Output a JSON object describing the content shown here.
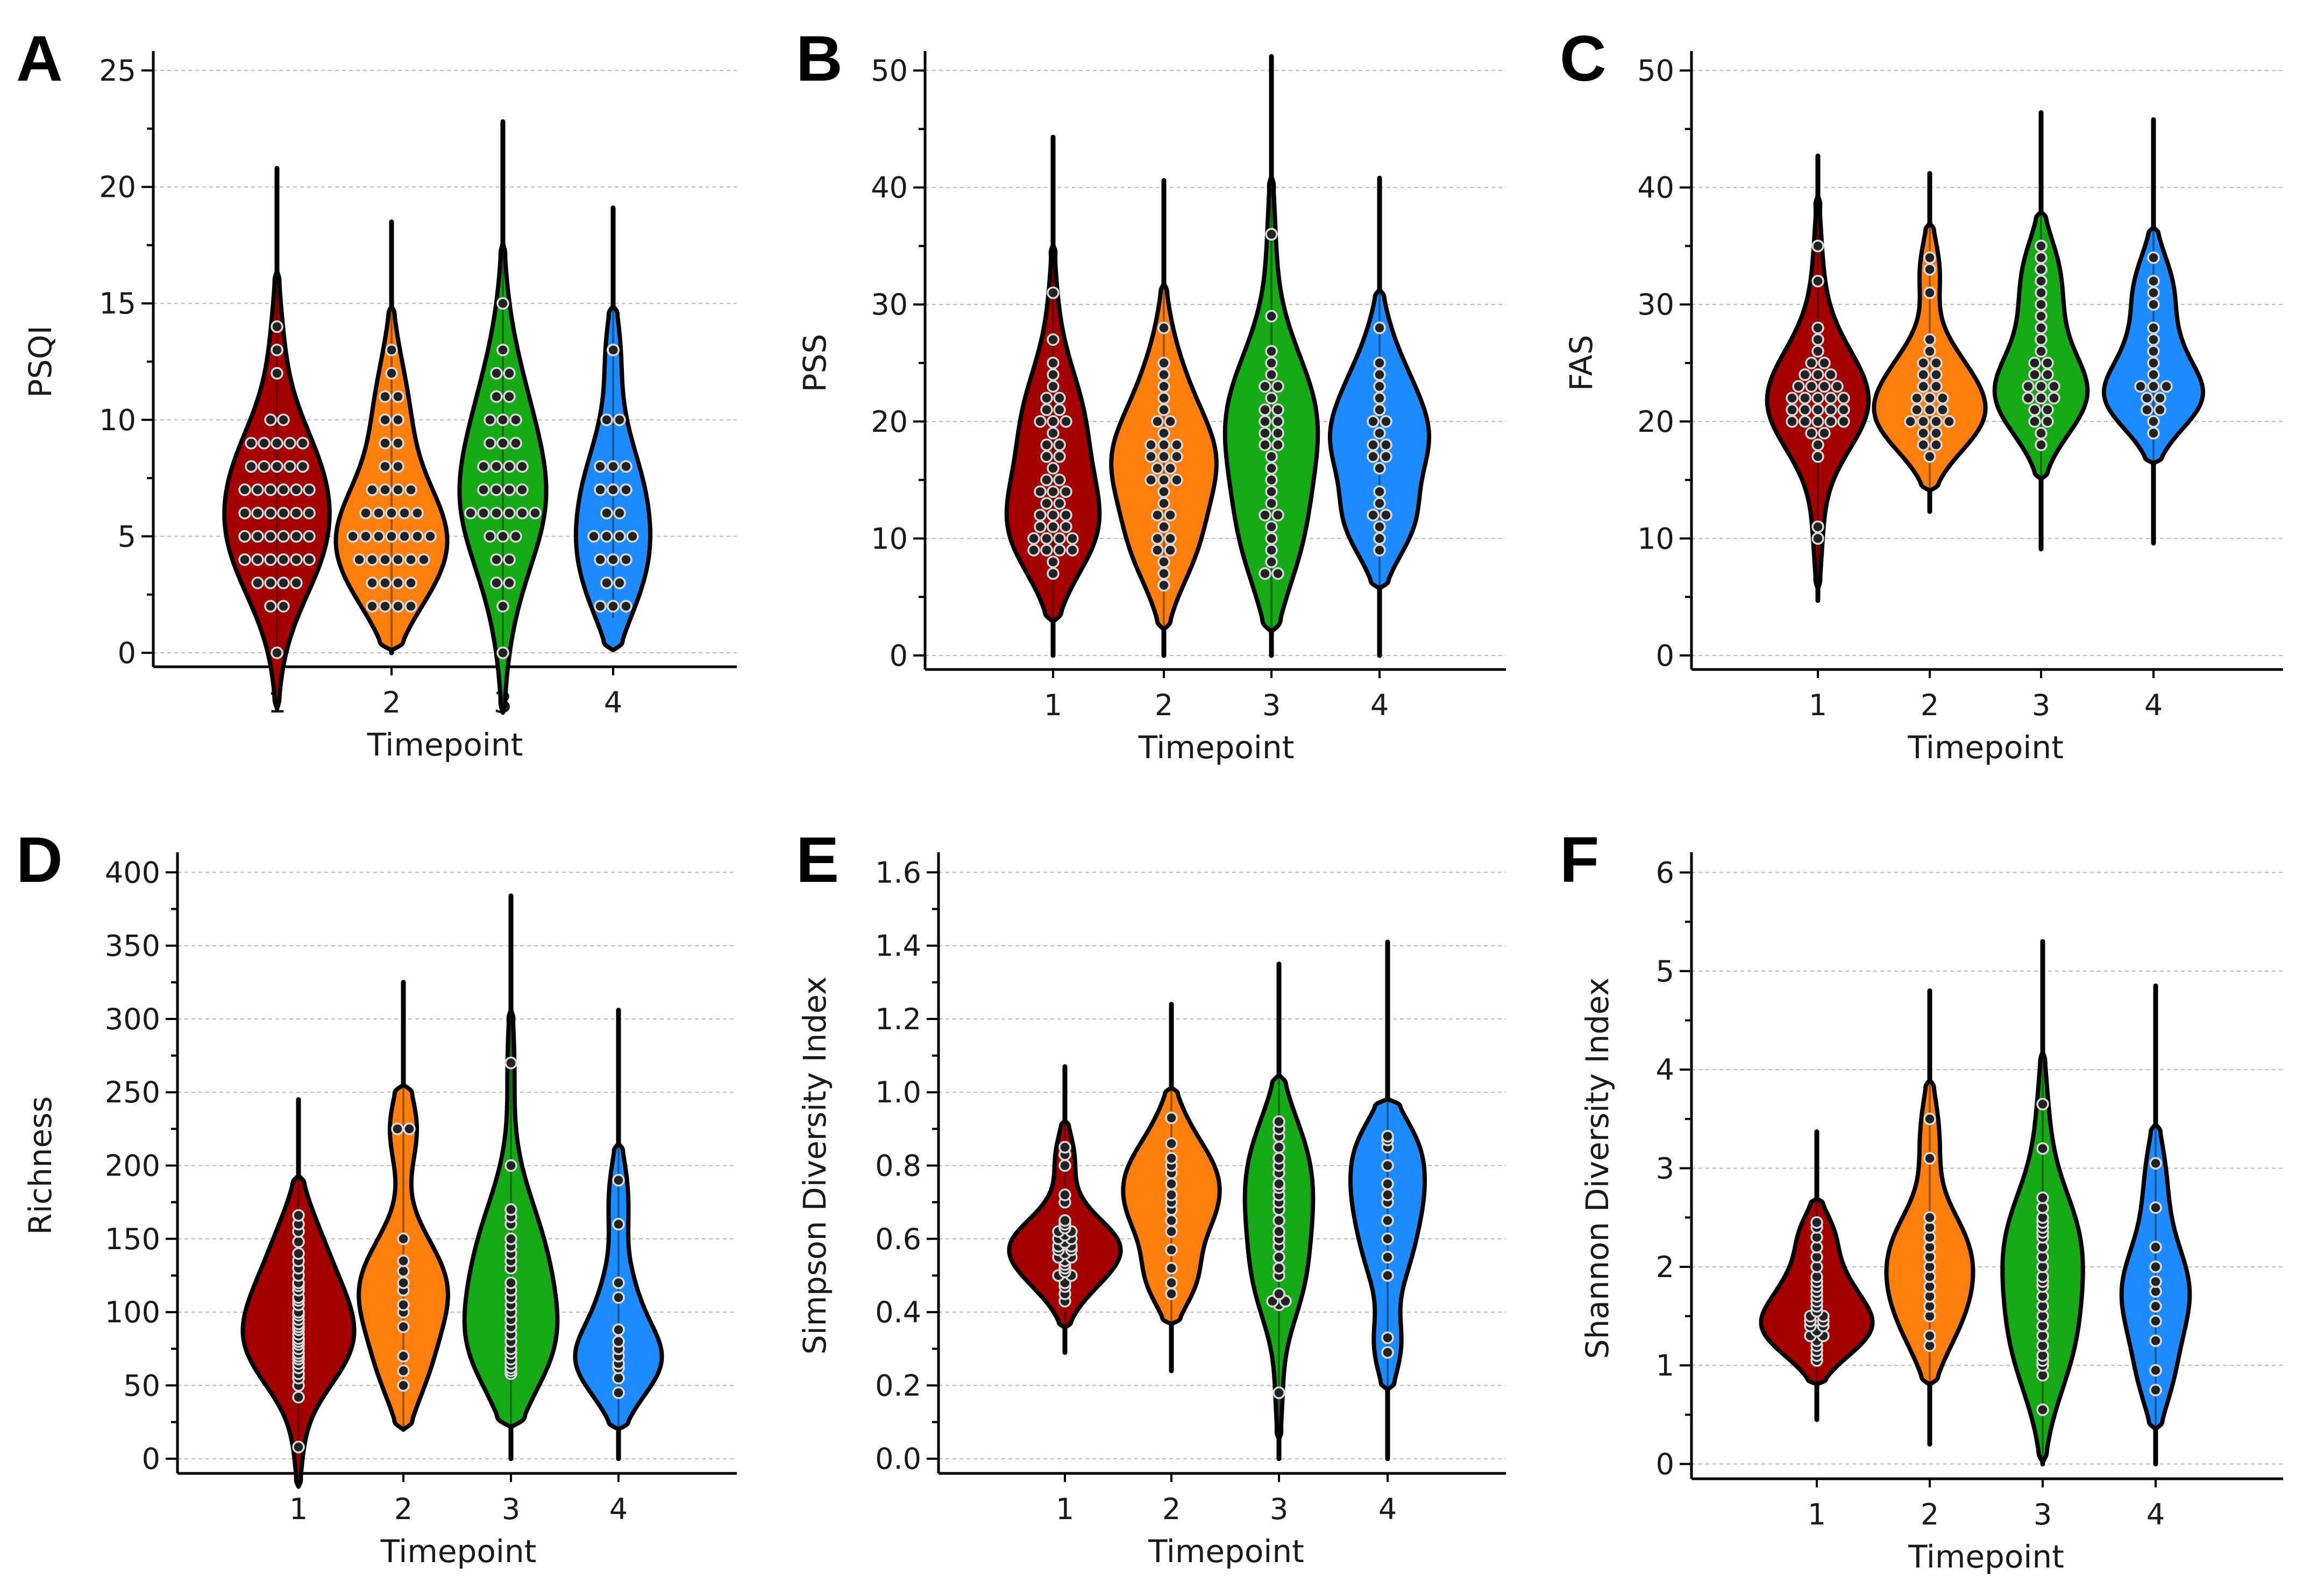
{
  "colors": {
    "timepoint_1": "#A40000",
    "timepoint_2": "#FF7F0E",
    "timepoint_3": "#16AA16",
    "timepoint_4": "#1E8CFF"
  },
  "chart_data": [
    {
      "panel": "A",
      "type": "violin",
      "ylabel": "PSQI",
      "xlabel": "Timepoint",
      "categories": [
        "1",
        "2",
        "3",
        "4"
      ],
      "ylim": [
        -0.6,
        25.6
      ],
      "yticks": [
        0,
        5,
        10,
        15,
        20,
        25
      ],
      "series": [
        {
          "name": "1",
          "range": [
            0,
            20.8
          ],
          "mode": 6,
          "width": 0.85,
          "values": [
            0,
            2,
            2,
            3,
            3,
            3,
            3,
            4,
            4,
            4,
            4,
            4,
            4,
            5,
            5,
            5,
            5,
            5,
            5,
            6,
            6,
            6,
            6,
            6,
            6,
            7,
            7,
            7,
            7,
            7,
            7,
            8,
            8,
            8,
            8,
            8,
            9,
            9,
            9,
            9,
            9,
            10,
            10,
            12,
            13,
            14
          ]
        },
        {
          "name": "2",
          "range": [
            0,
            18.5
          ],
          "mode": 5,
          "width": 0.9,
          "values": [
            2,
            2,
            2,
            2,
            3,
            3,
            3,
            3,
            4,
            4,
            4,
            4,
            4,
            4,
            5,
            5,
            5,
            5,
            5,
            5,
            5,
            6,
            6,
            6,
            6,
            6,
            7,
            7,
            7,
            7,
            8,
            8,
            9,
            9,
            10,
            10,
            11,
            11,
            12,
            13
          ]
        },
        {
          "name": "3",
          "range": [
            0,
            22.8
          ],
          "mode": 6,
          "width": 0.7,
          "values": [
            0,
            2,
            3,
            3,
            4,
            4,
            5,
            5,
            5,
            6,
            6,
            6,
            6,
            6,
            6,
            7,
            7,
            7,
            7,
            8,
            8,
            8,
            8,
            9,
            9,
            9,
            10,
            10,
            10,
            11,
            11,
            12,
            12,
            13,
            15
          ]
        },
        {
          "name": "4",
          "range": [
            1.5,
            19.1
          ],
          "mode": 5.5,
          "width": 0.6,
          "values": [
            2,
            2,
            2,
            3,
            3,
            4,
            4,
            4,
            5,
            5,
            5,
            5,
            6,
            6,
            7,
            7,
            7,
            8,
            8,
            8,
            10,
            10,
            13,
            13
          ]
        }
      ]
    },
    {
      "panel": "B",
      "type": "violin",
      "ylabel": "PSS",
      "xlabel": "Timepoint",
      "categories": [
        "1",
        "2",
        "3",
        "4"
      ],
      "ylim": [
        -1.2,
        51.2
      ],
      "yticks": [
        0,
        10,
        20,
        30,
        40,
        50
      ],
      "series": [
        {
          "name": "1",
          "range": [
            0,
            44.3
          ],
          "mode": 11,
          "width": 0.75,
          "values": [
            7,
            8,
            9,
            9,
            9,
            9,
            10,
            10,
            10,
            10,
            11,
            11,
            11,
            12,
            12,
            12,
            13,
            13,
            14,
            14,
            14,
            15,
            15,
            16,
            17,
            17,
            18,
            18,
            19,
            20,
            20,
            20,
            21,
            21,
            22,
            22,
            23,
            24,
            25,
            27,
            31
          ]
        },
        {
          "name": "2",
          "range": [
            0,
            40.6
          ],
          "mode": 16,
          "width": 0.85,
          "values": [
            6,
            7,
            8,
            9,
            9,
            10,
            10,
            11,
            12,
            12,
            13,
            14,
            15,
            15,
            15,
            16,
            16,
            17,
            17,
            17,
            18,
            18,
            18,
            19,
            20,
            20,
            21,
            22,
            23,
            24,
            25,
            28
          ]
        },
        {
          "name": "3",
          "range": [
            0,
            51.2
          ],
          "mode": 19,
          "width": 0.75,
          "values": [
            7,
            7,
            8,
            9,
            10,
            11,
            12,
            12,
            13,
            14,
            15,
            16,
            17,
            18,
            18,
            19,
            19,
            20,
            20,
            21,
            21,
            22,
            23,
            23,
            24,
            25,
            26,
            29,
            36
          ]
        },
        {
          "name": "4",
          "range": [
            0,
            40.8
          ],
          "mode": 18,
          "width": 0.8,
          "values": [
            9,
            10,
            11,
            12,
            12,
            13,
            14,
            16,
            17,
            17,
            18,
            18,
            19,
            20,
            20,
            21,
            22,
            23,
            24,
            25,
            28
          ]
        }
      ]
    },
    {
      "panel": "C",
      "type": "violin",
      "ylabel": "FAS",
      "xlabel": "Timepoint",
      "categories": [
        "1",
        "2",
        "3",
        "4"
      ],
      "ylim": [
        -1.2,
        51.2
      ],
      "yticks": [
        0,
        10,
        20,
        30,
        40,
        50
      ],
      "series": [
        {
          "name": "1",
          "range": [
            4.7,
            42.7
          ],
          "mode": 21.5,
          "width": 0.82,
          "values": [
            10,
            11,
            17,
            18,
            19,
            19,
            20,
            20,
            20,
            20,
            20,
            21,
            21,
            21,
            21,
            21,
            22,
            22,
            22,
            22,
            22,
            23,
            23,
            23,
            23,
            24,
            24,
            24,
            25,
            25,
            26,
            27,
            28,
            32,
            35
          ]
        },
        {
          "name": "2",
          "range": [
            12.3,
            41.2
          ],
          "mode": 21.5,
          "width": 0.9,
          "values": [
            17,
            18,
            18,
            19,
            19,
            20,
            20,
            20,
            20,
            21,
            21,
            21,
            22,
            22,
            22,
            23,
            23,
            24,
            24,
            25,
            25,
            26,
            27,
            31,
            33,
            34
          ]
        },
        {
          "name": "3",
          "range": [
            9.1,
            46.4
          ],
          "mode": 22.5,
          "width": 0.75,
          "values": [
            18,
            19,
            20,
            20,
            21,
            21,
            22,
            22,
            22,
            23,
            23,
            23,
            24,
            24,
            25,
            25,
            26,
            27,
            28,
            29,
            30,
            31,
            32,
            33,
            34,
            35
          ]
        },
        {
          "name": "4",
          "range": [
            9.6,
            45.8
          ],
          "mode": 23,
          "width": 0.8,
          "values": [
            19,
            20,
            21,
            21,
            22,
            22,
            23,
            23,
            23,
            24,
            25,
            26,
            27,
            28,
            30,
            31,
            32,
            34
          ]
        }
      ]
    },
    {
      "panel": "D",
      "type": "violin",
      "ylabel": "Richness",
      "xlabel": "Timepoint",
      "categories": [
        "1",
        "2",
        "3",
        "4"
      ],
      "ylim": [
        -10,
        410
      ],
      "yticks": [
        0,
        50,
        100,
        150,
        200,
        250,
        300,
        350,
        400
      ],
      "series": [
        {
          "name": "1",
          "range": [
            5,
            245
          ],
          "mode": 75,
          "width": 0.9,
          "values": [
            8,
            42,
            50,
            55,
            58,
            62,
            65,
            68,
            70,
            72,
            75,
            78,
            80,
            82,
            85,
            88,
            90,
            92,
            95,
            98,
            100,
            105,
            108,
            110,
            115,
            118,
            120,
            125,
            130,
            135,
            140,
            148,
            155,
            160,
            166
          ]
        },
        {
          "name": "2",
          "range": [
            20,
            325
          ],
          "mode": 120,
          "width": 0.72,
          "values": [
            50,
            60,
            70,
            90,
            100,
            105,
            115,
            120,
            128,
            135,
            150,
            225,
            225
          ]
        },
        {
          "name": "3",
          "range": [
            0,
            384
          ],
          "mode": 80,
          "width": 0.75,
          "values": [
            58,
            60,
            62,
            65,
            68,
            72,
            75,
            80,
            85,
            90,
            95,
            100,
            105,
            110,
            115,
            120,
            130,
            135,
            140,
            145,
            150,
            160,
            165,
            170,
            200,
            270
          ]
        },
        {
          "name": "4",
          "range": [
            0,
            306
          ],
          "mode": 75,
          "width": 0.7,
          "values": [
            45,
            55,
            62,
            65,
            70,
            75,
            80,
            88,
            110,
            120,
            160,
            190
          ]
        }
      ]
    },
    {
      "panel": "E",
      "type": "violin",
      "ylabel": "Simpson Diversity Index",
      "xlabel": "Timepoint",
      "categories": [
        "1",
        "2",
        "3",
        "4"
      ],
      "ylim": [
        -0.04,
        1.64
      ],
      "yticks": [
        0.0,
        0.2,
        0.4,
        0.6,
        0.8,
        1.0,
        1.2,
        1.4,
        1.6
      ],
      "series": [
        {
          "name": "1",
          "range": [
            0.29,
            1.07
          ],
          "mode": 0.58,
          "width": 0.9,
          "values": [
            0.43,
            0.45,
            0.47,
            0.48,
            0.5,
            0.5,
            0.51,
            0.52,
            0.53,
            0.54,
            0.55,
            0.55,
            0.56,
            0.57,
            0.57,
            0.58,
            0.58,
            0.59,
            0.6,
            0.6,
            0.61,
            0.62,
            0.62,
            0.63,
            0.64,
            0.65,
            0.7,
            0.72,
            0.8,
            0.83,
            0.85
          ]
        },
        {
          "name": "2",
          "range": [
            0.24,
            1.24
          ],
          "mode": 0.78,
          "width": 0.78,
          "values": [
            0.45,
            0.48,
            0.52,
            0.57,
            0.62,
            0.65,
            0.68,
            0.7,
            0.72,
            0.75,
            0.78,
            0.8,
            0.82,
            0.86,
            0.93
          ]
        },
        {
          "name": "3",
          "range": [
            0.0,
            1.35
          ],
          "mode": 0.75,
          "width": 0.55,
          "values": [
            0.18,
            0.42,
            0.43,
            0.43,
            0.45,
            0.5,
            0.52,
            0.55,
            0.58,
            0.6,
            0.62,
            0.65,
            0.68,
            0.7,
            0.72,
            0.74,
            0.75,
            0.78,
            0.8,
            0.82,
            0.85,
            0.88,
            0.9,
            0.92
          ]
        },
        {
          "name": "4",
          "range": [
            0.0,
            1.41
          ],
          "mode": 0.75,
          "width": 0.6,
          "values": [
            0.29,
            0.33,
            0.5,
            0.55,
            0.6,
            0.65,
            0.7,
            0.72,
            0.75,
            0.8,
            0.85,
            0.87,
            0.88
          ]
        }
      ]
    },
    {
      "panel": "F",
      "type": "violin",
      "ylabel": "Shannon Diversity Index",
      "xlabel": "Timepoint",
      "categories": [
        "1",
        "2",
        "3",
        "4"
      ],
      "ylim": [
        -0.15,
        6.15
      ],
      "yticks": [
        0,
        1,
        2,
        3,
        4,
        5,
        6
      ],
      "series": [
        {
          "name": "1",
          "range": [
            0.45,
            3.37
          ],
          "mode": 1.45,
          "width": 0.9,
          "values": [
            1.05,
            1.1,
            1.15,
            1.2,
            1.25,
            1.3,
            1.3,
            1.35,
            1.4,
            1.4,
            1.45,
            1.45,
            1.5,
            1.5,
            1.55,
            1.6,
            1.65,
            1.7,
            1.75,
            1.8,
            1.85,
            1.9,
            2.0,
            2.1,
            2.2,
            2.3,
            2.4,
            2.45
          ]
        },
        {
          "name": "2",
          "range": [
            0.2,
            4.8
          ],
          "mode": 2.2,
          "width": 0.7,
          "values": [
            1.2,
            1.3,
            1.5,
            1.6,
            1.7,
            1.8,
            1.9,
            2.0,
            2.1,
            2.2,
            2.3,
            2.4,
            2.5,
            3.1,
            3.5
          ]
        },
        {
          "name": "3",
          "range": [
            0.0,
            5.3
          ],
          "mode": 1.9,
          "width": 0.65,
          "values": [
            0.55,
            0.9,
            1.0,
            1.05,
            1.1,
            1.2,
            1.3,
            1.4,
            1.5,
            1.6,
            1.7,
            1.8,
            1.85,
            1.9,
            2.0,
            2.1,
            2.2,
            2.3,
            2.35,
            2.4,
            2.45,
            2.5,
            2.6,
            2.7,
            3.2,
            3.65
          ]
        },
        {
          "name": "4",
          "range": [
            0.0,
            4.85
          ],
          "mode": 1.8,
          "width": 0.55,
          "values": [
            0.75,
            0.95,
            1.25,
            1.45,
            1.6,
            1.75,
            1.85,
            2.0,
            2.2,
            2.6,
            3.05
          ]
        }
      ]
    }
  ]
}
